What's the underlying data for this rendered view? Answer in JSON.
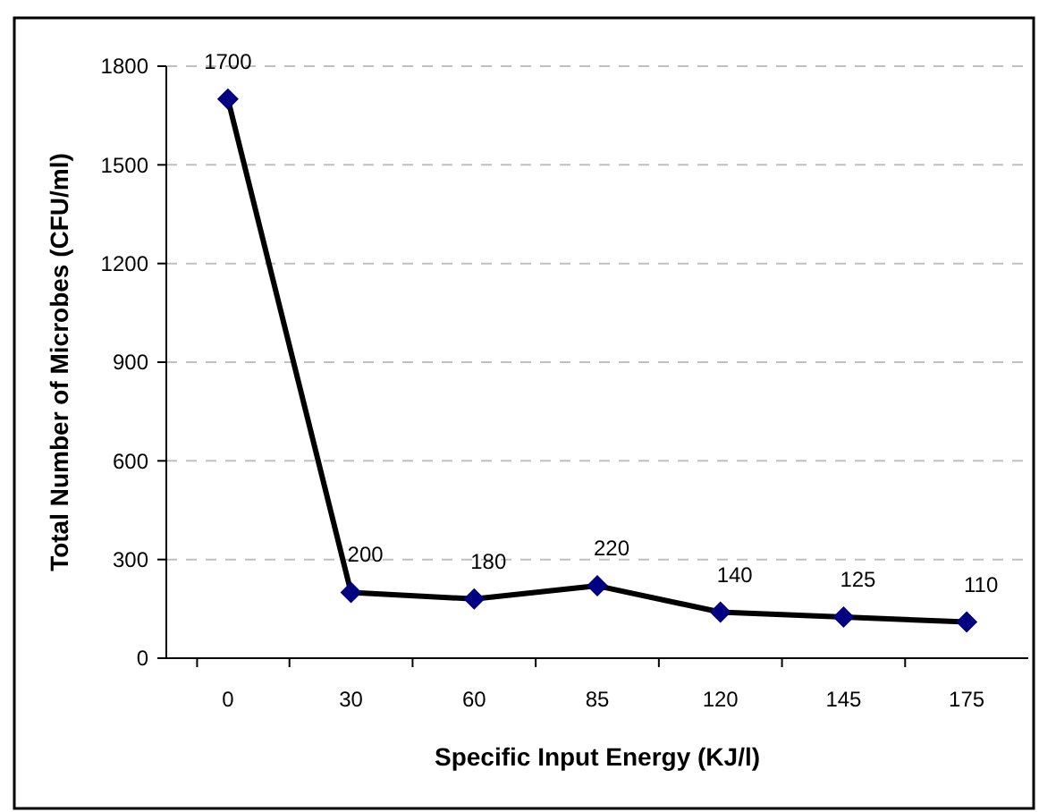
{
  "chart_data": {
    "type": "line",
    "xlabel": "Specific Input Energy  (KJ/l)",
    "ylabel": "Total Number of Microbes (CFU/ml)",
    "categories": [
      "0",
      "30",
      "60",
      "85",
      "120",
      "145",
      "175"
    ],
    "series": [
      {
        "color": "#000000",
        "colors": [
          "#000080",
          "#000080",
          "#000080",
          "#000080",
          "#000080",
          "#000080",
          "#000080"
        ],
        "values": [
          1700,
          200,
          180,
          220,
          140,
          125,
          110
        ]
      }
    ],
    "marker": "diamond",
    "data_labels": true,
    "grid": "y",
    "ylim": [
      0,
      1800
    ],
    "yticks": [
      0,
      300,
      600,
      900,
      1200,
      1500,
      1800
    ]
  }
}
